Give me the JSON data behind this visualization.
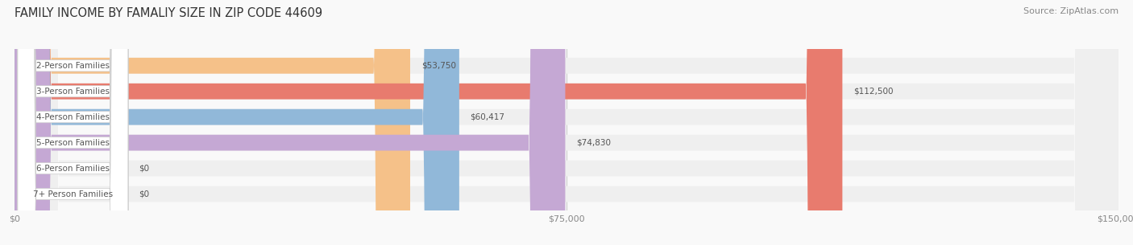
{
  "title": "FAMILY INCOME BY FAMALIY SIZE IN ZIP CODE 44609",
  "source": "Source: ZipAtlas.com",
  "categories": [
    "2-Person Families",
    "3-Person Families",
    "4-Person Families",
    "5-Person Families",
    "6-Person Families",
    "7+ Person Families"
  ],
  "values": [
    53750,
    112500,
    60417,
    74830,
    0,
    0
  ],
  "bar_colors": [
    "#f5c189",
    "#e87b6e",
    "#91b8d9",
    "#c5a8d4",
    "#7ecfca",
    "#b8c4e8"
  ],
  "bar_bg_color": "#efefef",
  "xlim": [
    0,
    150000
  ],
  "xticks": [
    0,
    75000,
    150000
  ],
  "xtick_labels": [
    "$0",
    "$75,000",
    "$150,000"
  ],
  "value_labels": [
    "$53,750",
    "$112,500",
    "$60,417",
    "$74,830",
    "$0",
    "$0"
  ],
  "bar_height": 0.62,
  "title_fontsize": 10.5,
  "source_fontsize": 8,
  "tick_fontsize": 8,
  "label_fontsize": 7.5,
  "value_fontsize": 7.5,
  "figsize": [
    14.06,
    3.05
  ],
  "dpi": 100
}
